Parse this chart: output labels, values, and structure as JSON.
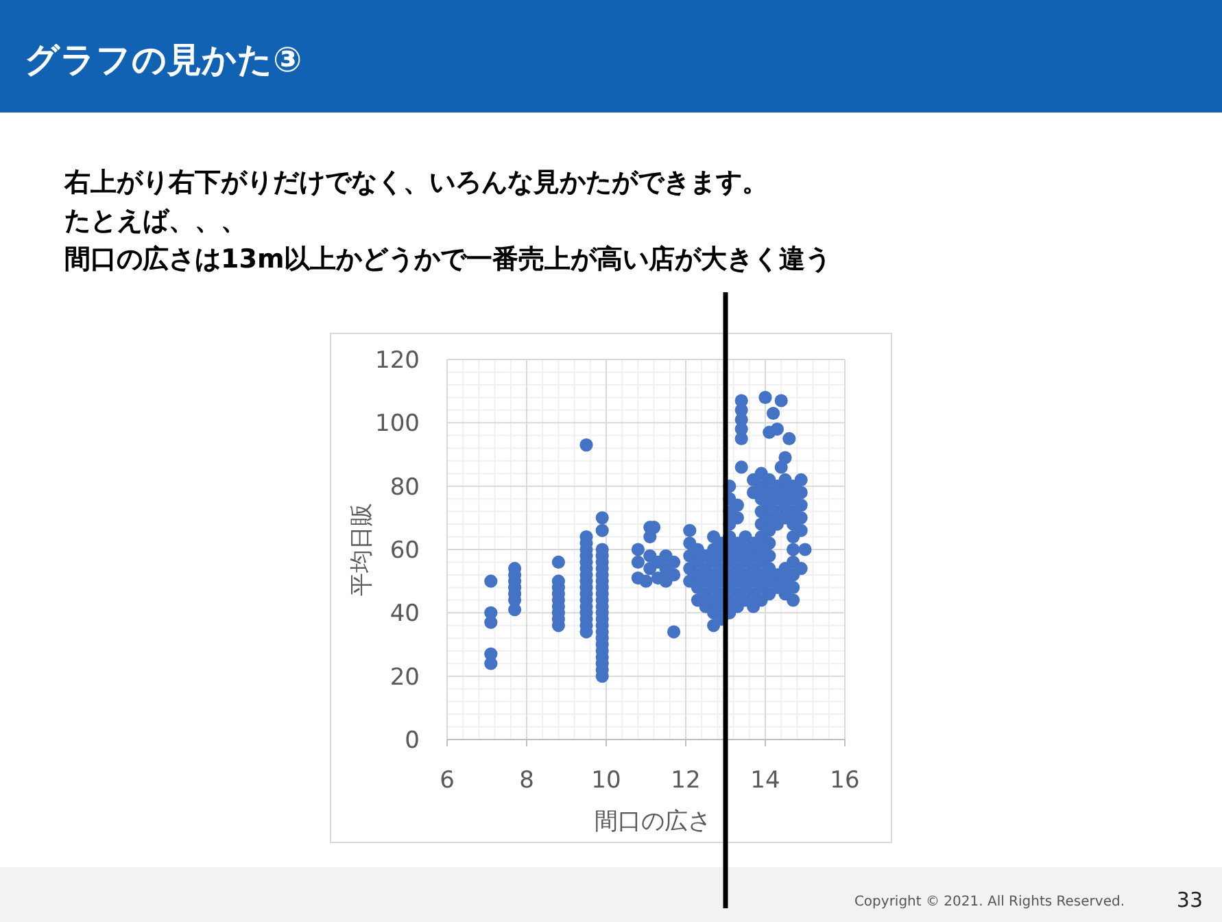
{
  "chart_data": {
    "type": "scatter",
    "title": "グラフの見かた③",
    "annotations": [
      "右上がり右下がりだけでなく、いろんな見かたができます。",
      "たとえば、、、",
      "間口の広さは13m以上かどうかで一番売上が高い店が大きく違う",
      "Copyright © 2021. All Rights Reserved.",
      "33"
    ],
    "xlabel": "間口の広さ",
    "ylabel": "平均日販",
    "xlim": [
      6,
      16
    ],
    "ylim": [
      0,
      120
    ],
    "xticks": [
      6,
      8,
      10,
      12,
      14,
      16
    ],
    "yticks": [
      0,
      20,
      40,
      60,
      80,
      100,
      120
    ],
    "grid": true,
    "marker": "circle",
    "ref_lines": [
      {
        "axis": "x",
        "value": 13,
        "color": "#000000",
        "line_style": "solid"
      }
    ],
    "series": [
      {
        "color": "#4472c4",
        "x": [
          7.1,
          7.1,
          7.1,
          7.1,
          7.1,
          7.7,
          7.7,
          7.7,
          7.7,
          7.7,
          7.7,
          7.7,
          8.8,
          8.8,
          8.8,
          8.8,
          8.8,
          8.8,
          8.8,
          8.8,
          8.8,
          9.5,
          9.5,
          9.5,
          9.5,
          9.5,
          9.5,
          9.5,
          9.5,
          9.5,
          9.5,
          9.5,
          9.5,
          9.5,
          9.5,
          9.5,
          9.5,
          9.5,
          9.9,
          9.9,
          9.9,
          9.9,
          9.9,
          9.9,
          9.9,
          9.9,
          9.9,
          9.9,
          9.9,
          9.9,
          9.9,
          9.9,
          9.9,
          9.9,
          9.9,
          9.9,
          9.9,
          9.9,
          9.9,
          9.9,
          9.9,
          10.8,
          10.8,
          10.8,
          11,
          11.1,
          11.1,
          11.1,
          11.1,
          11.2,
          11.3,
          11.3,
          11.5,
          11.5,
          11.5,
          11.7,
          11.7,
          11.7,
          12.1,
          12.1,
          12.1,
          12.1,
          12.1,
          12.3,
          12.3,
          12.3,
          12.3,
          12.3,
          12.5,
          12.5,
          12.5,
          12.5,
          12.5,
          12.7,
          12.7,
          12.7,
          12.7,
          12.7,
          12.7,
          12.7,
          12.7,
          12.9,
          12.9,
          12.9,
          12.9,
          12.9,
          12.9,
          12.9,
          13.1,
          13.1,
          13.1,
          13.1,
          13.1,
          13.1,
          13.1,
          13.1,
          13.1,
          13.1,
          13.1,
          13.3,
          13.3,
          13.3,
          13.3,
          13.3,
          13.3,
          13.3,
          13.3,
          13.4,
          13.4,
          13.4,
          13.4,
          13.4,
          13.4,
          13.5,
          13.5,
          13.5,
          13.5,
          13.5,
          13.5,
          13.7,
          13.7,
          13.7,
          13.7,
          13.7,
          13.7,
          13.7,
          13.7,
          13.9,
          13.9,
          13.9,
          13.9,
          13.9,
          13.9,
          13.9,
          13.9,
          13.9,
          13.9,
          13.9,
          14,
          14.1,
          14.1,
          14.1,
          14.1,
          14.1,
          14.1,
          14.1,
          14.1,
          14.1,
          14.1,
          14.1,
          14.2,
          14.3,
          14.3,
          14.3,
          14.3,
          14.3,
          14.3,
          14.3,
          14.4,
          14.4,
          14.5,
          14.5,
          14.5,
          14.5,
          14.5,
          14.5,
          14.5,
          14.5,
          14.6,
          14.7,
          14.7,
          14.7,
          14.7,
          14.7,
          14.7,
          14.7,
          14.7,
          14.7,
          14.7,
          14.9,
          14.9,
          14.9,
          14.9,
          14.9,
          14.9,
          15
        ],
        "values": [
          50,
          40,
          37,
          27,
          24,
          54,
          52,
          50,
          48,
          46,
          44,
          41,
          56,
          50,
          48,
          46,
          44,
          42,
          40,
          38,
          36,
          93,
          64,
          62,
          60,
          58,
          56,
          54,
          52,
          50,
          48,
          46,
          44,
          42,
          40,
          38,
          36,
          34,
          70,
          66,
          60,
          58,
          56,
          54,
          52,
          50,
          48,
          46,
          44,
          42,
          40,
          38,
          36,
          34,
          32,
          30,
          28,
          26,
          24,
          22,
          20,
          60,
          56,
          51,
          50,
          67,
          64,
          58,
          54,
          67,
          56,
          51,
          58,
          54,
          50,
          56,
          52,
          34,
          66,
          62,
          58,
          54,
          50,
          60,
          56,
          52,
          48,
          44,
          58,
          54,
          50,
          46,
          42,
          64,
          60,
          56,
          52,
          48,
          44,
          40,
          36,
          62,
          58,
          54,
          50,
          46,
          42,
          38,
          80,
          76,
          72,
          68,
          64,
          60,
          56,
          52,
          48,
          44,
          40,
          74,
          70,
          62,
          58,
          54,
          50,
          46,
          42,
          107,
          104,
          101,
          98,
          95,
          86,
          64,
          60,
          56,
          52,
          48,
          44,
          82,
          78,
          62,
          58,
          54,
          50,
          46,
          42,
          84,
          80,
          76,
          72,
          68,
          64,
          60,
          56,
          52,
          48,
          44,
          108,
          97,
          82,
          78,
          74,
          70,
          66,
          62,
          58,
          54,
          50,
          46,
          103,
          98,
          80,
          76,
          72,
          68,
          52,
          48,
          107,
          86,
          89,
          82,
          78,
          74,
          70,
          54,
          50,
          46,
          95,
          80,
          76,
          72,
          68,
          64,
          60,
          56,
          52,
          48,
          44,
          82,
          78,
          74,
          70,
          66,
          54,
          60
        ]
      }
    ]
  }
}
